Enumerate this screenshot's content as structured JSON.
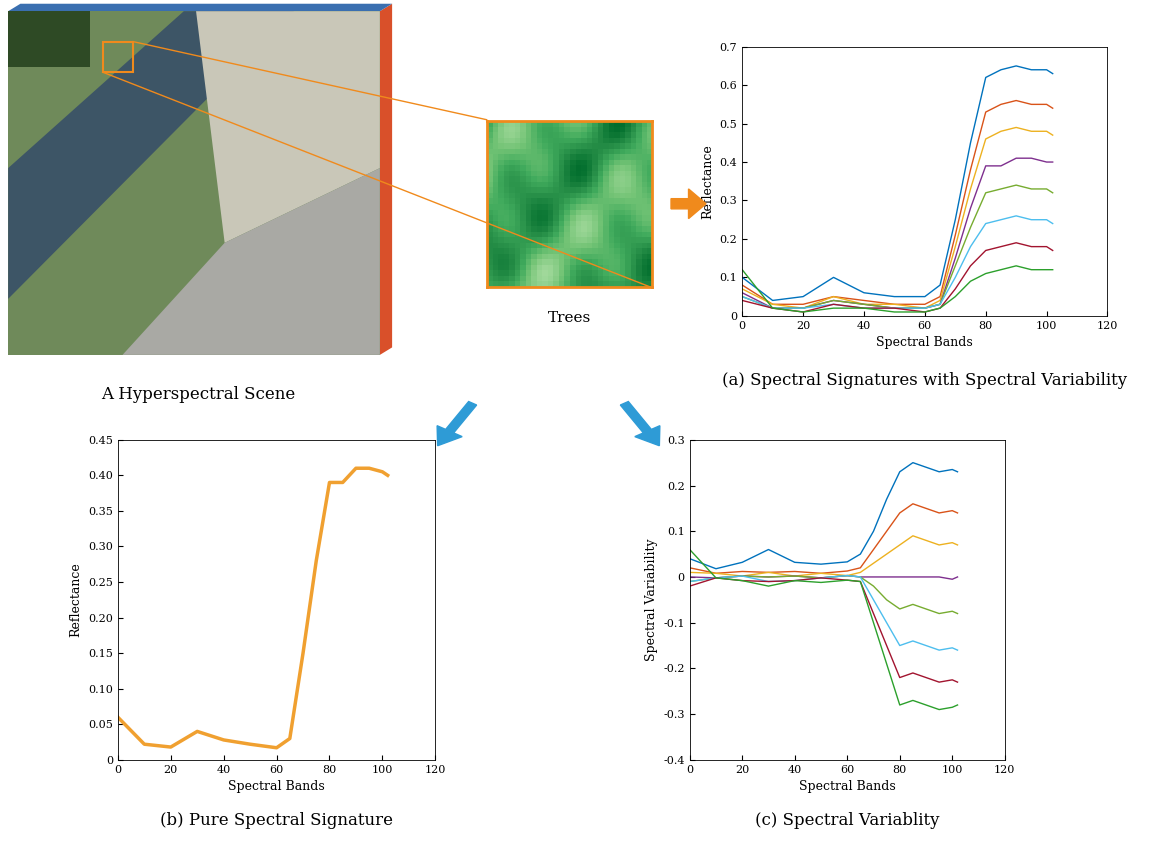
{
  "scene_label": "A Hyperspectral Scene",
  "patch_label": "Trees",
  "chart_data": [
    {
      "type": "line",
      "title": "(a) Spectral Signatures with Spectral Variability",
      "x_label": "Spectral Bands",
      "y_label": "Reflectance",
      "x": [
        0,
        10,
        20,
        30,
        40,
        50,
        60,
        65,
        70,
        75,
        80,
        85,
        90,
        95,
        100,
        102
      ],
      "xlim": [
        0,
        120
      ],
      "xticks": [
        0,
        20,
        40,
        60,
        80,
        100,
        120
      ],
      "ylim": [
        0,
        0.7
      ],
      "yticks": [
        0,
        0.1,
        0.2,
        0.3,
        0.4,
        0.5,
        0.6,
        0.7
      ],
      "series": [
        {
          "color": "#0072bd",
          "values": [
            0.1,
            0.04,
            0.05,
            0.1,
            0.06,
            0.05,
            0.05,
            0.08,
            0.25,
            0.45,
            0.62,
            0.64,
            0.65,
            0.64,
            0.64,
            0.63
          ]
        },
        {
          "color": "#d95319",
          "values": [
            0.08,
            0.03,
            0.03,
            0.05,
            0.04,
            0.03,
            0.03,
            0.05,
            0.21,
            0.38,
            0.53,
            0.55,
            0.56,
            0.55,
            0.55,
            0.54
          ]
        },
        {
          "color": "#edb120",
          "values": [
            0.07,
            0.03,
            0.02,
            0.05,
            0.03,
            0.03,
            0.02,
            0.04,
            0.18,
            0.33,
            0.46,
            0.48,
            0.49,
            0.48,
            0.48,
            0.47
          ]
        },
        {
          "color": "#7e2f8e",
          "values": [
            0.06,
            0.02,
            0.02,
            0.04,
            0.03,
            0.02,
            0.02,
            0.03,
            0.15,
            0.28,
            0.39,
            0.39,
            0.41,
            0.41,
            0.4,
            0.4
          ]
        },
        {
          "color": "#77ac30",
          "values": [
            0.05,
            0.02,
            0.02,
            0.04,
            0.03,
            0.02,
            0.02,
            0.03,
            0.13,
            0.23,
            0.32,
            0.33,
            0.34,
            0.33,
            0.33,
            0.32
          ]
        },
        {
          "color": "#4dbeee",
          "values": [
            0.05,
            0.02,
            0.02,
            0.03,
            0.02,
            0.02,
            0.02,
            0.03,
            0.1,
            0.18,
            0.24,
            0.25,
            0.26,
            0.25,
            0.25,
            0.24
          ]
        },
        {
          "color": "#a2142f",
          "values": [
            0.04,
            0.02,
            0.01,
            0.03,
            0.02,
            0.02,
            0.01,
            0.02,
            0.07,
            0.13,
            0.17,
            0.18,
            0.19,
            0.18,
            0.18,
            0.17
          ]
        },
        {
          "color": "#2ca02c",
          "values": [
            0.12,
            0.02,
            0.01,
            0.02,
            0.02,
            0.01,
            0.01,
            0.02,
            0.05,
            0.09,
            0.11,
            0.12,
            0.13,
            0.12,
            0.12,
            0.12
          ]
        }
      ]
    },
    {
      "type": "line",
      "title": "(b) Pure Spectral Signature",
      "x_label": "Spectral Bands",
      "y_label": "Reflectance",
      "x": [
        0,
        10,
        20,
        30,
        40,
        50,
        60,
        65,
        70,
        75,
        80,
        85,
        90,
        95,
        100,
        102
      ],
      "xlim": [
        0,
        120
      ],
      "xticks": [
        0,
        20,
        40,
        60,
        80,
        100,
        120
      ],
      "ylim": [
        0,
        0.45
      ],
      "yticks": [
        0,
        0.05,
        {
          "value": 0.1,
          "label": "0.10"
        },
        0.15,
        {
          "value": 0.2,
          "label": "0.20"
        },
        0.25,
        {
          "value": 0.3,
          "label": "0.30"
        },
        0.35,
        {
          "value": 0.4,
          "label": "0.40"
        },
        0.45
      ],
      "series": [
        {
          "color": "#f0a030",
          "values": [
            0.06,
            0.022,
            0.018,
            0.04,
            0.028,
            0.022,
            0.017,
            0.03,
            0.15,
            0.28,
            0.39,
            0.39,
            0.41,
            0.41,
            0.405,
            0.4
          ]
        }
      ]
    },
    {
      "type": "line",
      "title": "(c) Spectral Variablity",
      "x_label": "Spectral Bands",
      "y_label": "Spectral Variability",
      "x": [
        0,
        10,
        20,
        30,
        40,
        50,
        60,
        65,
        70,
        75,
        80,
        85,
        90,
        95,
        100,
        102
      ],
      "xlim": [
        0,
        120
      ],
      "xticks": [
        0,
        20,
        40,
        60,
        80,
        100,
        120
      ],
      "ylim": [
        -0.4,
        0.3
      ],
      "yticks": [
        -0.4,
        -0.3,
        -0.2,
        -0.1,
        0,
        0.1,
        0.2,
        0.3
      ],
      "series": [
        {
          "color": "#0072bd",
          "values": [
            0.04,
            0.018,
            0.032,
            0.06,
            0.032,
            0.028,
            0.033,
            0.05,
            0.1,
            0.17,
            0.23,
            0.25,
            0.24,
            0.23,
            0.235,
            0.23
          ]
        },
        {
          "color": "#d95319",
          "values": [
            0.02,
            0.008,
            0.012,
            0.01,
            0.012,
            0.008,
            0.013,
            0.02,
            0.06,
            0.1,
            0.14,
            0.16,
            0.15,
            0.14,
            0.145,
            0.14
          ]
        },
        {
          "color": "#edb120",
          "values": [
            0.01,
            0.008,
            0.002,
            0.01,
            0.002,
            0.008,
            0.003,
            0.01,
            0.03,
            0.05,
            0.07,
            0.09,
            0.08,
            0.07,
            0.075,
            0.07
          ]
        },
        {
          "color": "#7e2f8e",
          "values": [
            0,
            -0.002,
            0.002,
            0,
            0.002,
            -0.002,
            0.003,
            0,
            0,
            0,
            0,
            0,
            0,
            0,
            -0.005,
            0
          ]
        },
        {
          "color": "#77ac30",
          "values": [
            -0.01,
            -0.002,
            0.002,
            0,
            0.002,
            -0.002,
            0.003,
            0,
            -0.02,
            -0.05,
            -0.07,
            -0.06,
            -0.07,
            -0.08,
            -0.075,
            -0.08
          ]
        },
        {
          "color": "#4dbeee",
          "values": [
            -0.01,
            -0.002,
            0.002,
            -0.01,
            -0.008,
            -0.002,
            0.003,
            0,
            -0.05,
            -0.1,
            -0.15,
            -0.14,
            -0.15,
            -0.16,
            -0.155,
            -0.16
          ]
        },
        {
          "color": "#a2142f",
          "values": [
            -0.02,
            -0.002,
            -0.008,
            -0.01,
            -0.008,
            -0.002,
            -0.007,
            -0.01,
            -0.08,
            -0.15,
            -0.22,
            -0.21,
            -0.22,
            -0.23,
            -0.225,
            -0.23
          ]
        },
        {
          "color": "#2ca02c",
          "values": [
            0.06,
            -0.002,
            -0.008,
            -0.02,
            -0.008,
            -0.012,
            -0.007,
            -0.01,
            -0.1,
            -0.19,
            -0.28,
            -0.27,
            -0.28,
            -0.29,
            -0.285,
            -0.28
          ]
        }
      ]
    }
  ]
}
